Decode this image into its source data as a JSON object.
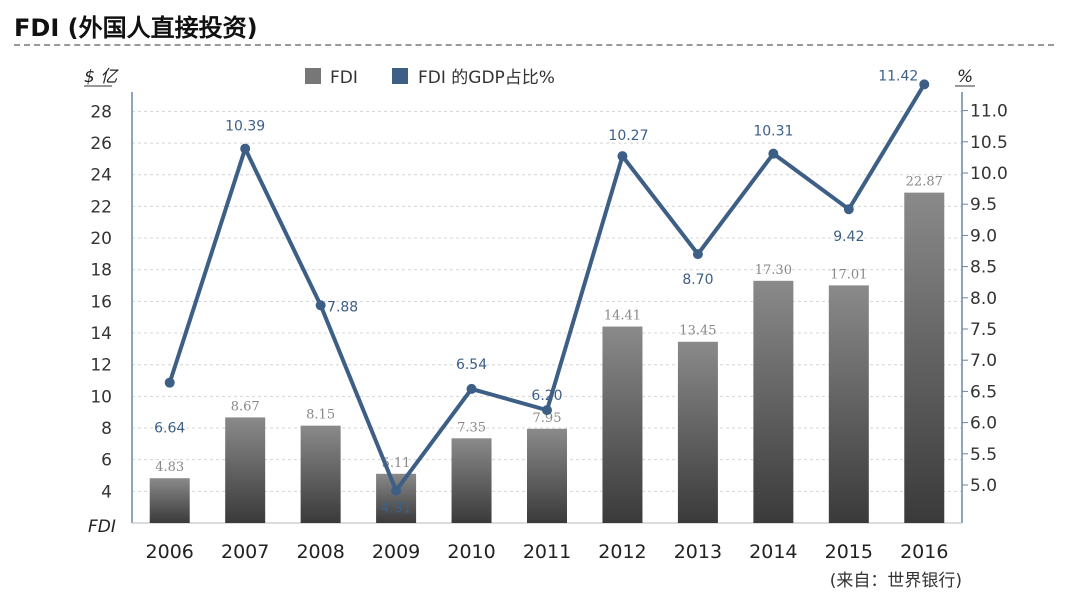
{
  "page": {
    "title": "FDI (外国人直接投资)",
    "source": "(来自：世界银行)"
  },
  "chart_data": {
    "type": "bar",
    "categories": [
      "2006",
      "2007",
      "2008",
      "2009",
      "2010",
      "2011",
      "2012",
      "2013",
      "2014",
      "2015",
      "2016"
    ],
    "series": [
      {
        "name": "FDI",
        "type": "bar",
        "axis": "left",
        "values": [
          4.83,
          8.67,
          8.15,
          5.11,
          7.35,
          7.95,
          14.41,
          13.45,
          17.3,
          17.01,
          22.87
        ],
        "labels": [
          "4.83",
          "8.67",
          "8.15",
          "5.11",
          "7.35",
          "7.95",
          "14.41",
          "13.45",
          "17.30",
          "17.01",
          "22.87"
        ],
        "color": "#666666"
      },
      {
        "name": "FDI 的GDP占比%",
        "type": "line",
        "axis": "right",
        "values": [
          6.64,
          10.39,
          7.88,
          4.91,
          6.54,
          6.2,
          10.27,
          8.7,
          10.31,
          9.42,
          11.42
        ],
        "labels": [
          "6.64",
          "10.39",
          "7.88",
          "4.91",
          "6.54",
          "6.20",
          "10.27",
          "8.70",
          "10.31",
          "9.42",
          "11.42"
        ],
        "color": "#3d5f86"
      }
    ],
    "y_left": {
      "label_top": "$ 亿",
      "label_bottom": "FDI",
      "ticks": [
        "28",
        "26",
        "24",
        "22",
        "20",
        "18",
        "16",
        "14",
        "12",
        "10",
        "8",
        "6",
        "4"
      ],
      "range": [
        2,
        29
      ]
    },
    "y_right": {
      "label": "%",
      "ticks": [
        "11.0",
        "10.5",
        "10.0",
        "9.5",
        "9.0",
        "8.5",
        "8.0",
        "7.5",
        "7.0",
        "6.5",
        "6.0",
        "5.5",
        "5.0"
      ],
      "range": [
        4.6,
        11.5
      ]
    },
    "grid": true,
    "legend_position": "top"
  }
}
